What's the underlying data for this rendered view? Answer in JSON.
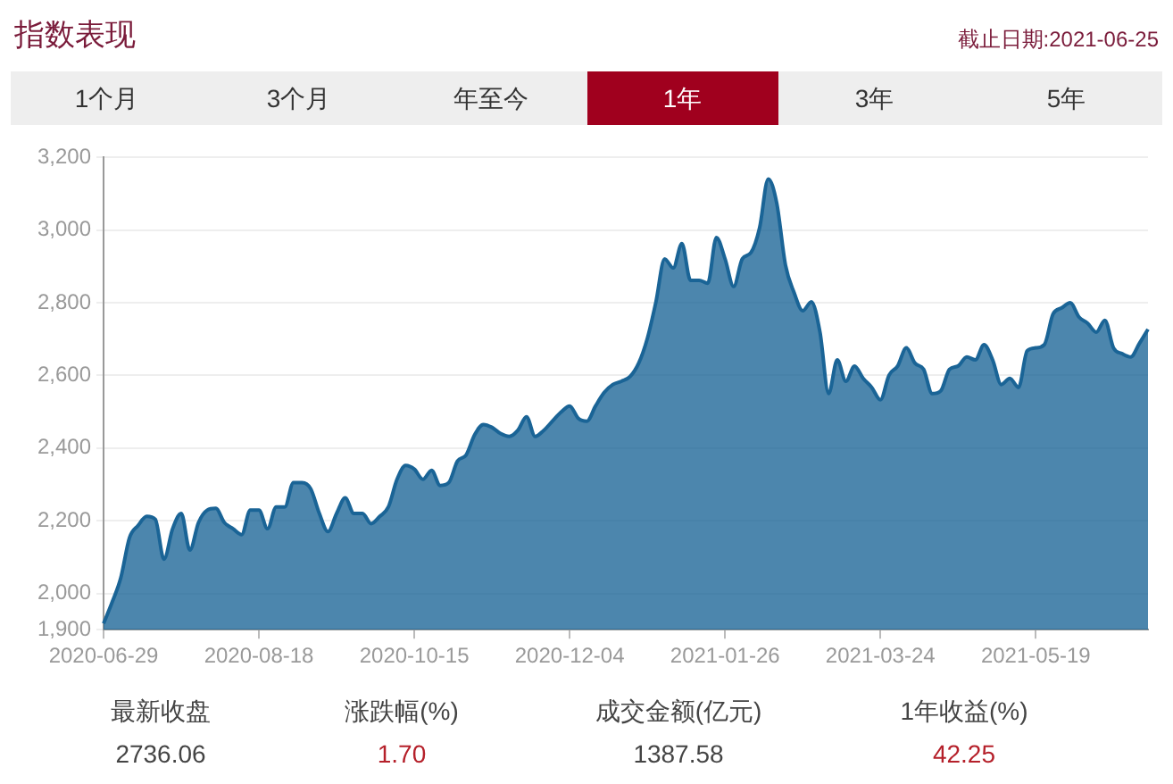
{
  "chart_data": {
    "type": "area",
    "title": "指数表现",
    "subtitle": "截止日期:2021-06-25",
    "categories": [
      "2020-06-29",
      null,
      null,
      null,
      null,
      null,
      null,
      null,
      null,
      null,
      null,
      null,
      null,
      null,
      null,
      null,
      null,
      null,
      "2020-08-18",
      null,
      null,
      null,
      null,
      null,
      null,
      null,
      null,
      null,
      null,
      null,
      null,
      null,
      null,
      null,
      null,
      null,
      "2020-10-15",
      null,
      null,
      null,
      null,
      null,
      null,
      null,
      null,
      null,
      null,
      null,
      null,
      null,
      null,
      null,
      null,
      null,
      "2020-12-04",
      null,
      null,
      null,
      null,
      null,
      null,
      null,
      null,
      null,
      null,
      null,
      null,
      null,
      null,
      null,
      null,
      null,
      "2021-01-26",
      null,
      null,
      null,
      null,
      null,
      null,
      null,
      null,
      null,
      null,
      null,
      null,
      null,
      null,
      null,
      null,
      null,
      "2021-03-24",
      null,
      null,
      null,
      null,
      null,
      null,
      null,
      null,
      null,
      null,
      null,
      null,
      null,
      null,
      null,
      null,
      null,
      "2021-05-19",
      null,
      null,
      null,
      null,
      null,
      null,
      null,
      null,
      null,
      null,
      null,
      null,
      null
    ],
    "series": [
      {
        "color": "#1a6496",
        "values": [
          1917,
          1976,
          2043,
          2153,
          2187,
          2212,
          2204,
          2094,
          2178,
          2220,
          2119,
          2195,
          2229,
          2234,
          2195,
          2178,
          2162,
          2229,
          2229,
          2178,
          2238,
          2238,
          2305,
          2305,
          2288,
          2220,
          2170,
          2220,
          2263,
          2220,
          2220,
          2192,
          2212,
          2238,
          2314,
          2352,
          2342,
          2314,
          2339,
          2297,
          2305,
          2364,
          2381,
          2437,
          2465,
          2457,
          2440,
          2432,
          2449,
          2486,
          2432,
          2449,
          2474,
          2499,
          2516,
          2482,
          2474,
          2516,
          2553,
          2575,
          2584,
          2597,
          2634,
          2702,
          2803,
          2921,
          2896,
          2963,
          2862,
          2862,
          2854,
          2980,
          2921,
          2845,
          2921,
          2938,
          3006,
          3141,
          3073,
          2904,
          2828,
          2778,
          2803,
          2719,
          2550,
          2643,
          2584,
          2626,
          2592,
          2567,
          2533,
          2601,
          2626,
          2676,
          2634,
          2617,
          2550,
          2558,
          2617,
          2626,
          2651,
          2643,
          2685,
          2643,
          2575,
          2592,
          2567,
          2668,
          2676,
          2685,
          2769,
          2786,
          2800,
          2761,
          2744,
          2719,
          2752,
          2676,
          2660,
          2651,
          2688,
          2727
        ]
      }
    ],
    "ylim": [
      1900,
      3200
    ],
    "yticks": [
      {
        "value": 1900,
        "label": "1,900"
      },
      {
        "value": 2000,
        "label": "2,000"
      },
      {
        "value": 2200,
        "label": "2,200"
      },
      {
        "value": 2400,
        "label": "2,400"
      },
      {
        "value": 2600,
        "label": "2,600"
      },
      {
        "value": 2800,
        "label": "2,800"
      },
      {
        "value": 3000,
        "label": "3,000"
      },
      {
        "value": 3200,
        "label": "3,200"
      }
    ],
    "grid": "y",
    "annotations": [
      "1个月",
      "3个月",
      "年至今",
      "1年",
      "3年",
      "5年",
      "最新收盘",
      "2736.06",
      "涨跌幅(%)",
      "1.70",
      "成交金额(亿元)",
      "1387.58",
      "1年收益(%)",
      "42.25"
    ]
  }
}
